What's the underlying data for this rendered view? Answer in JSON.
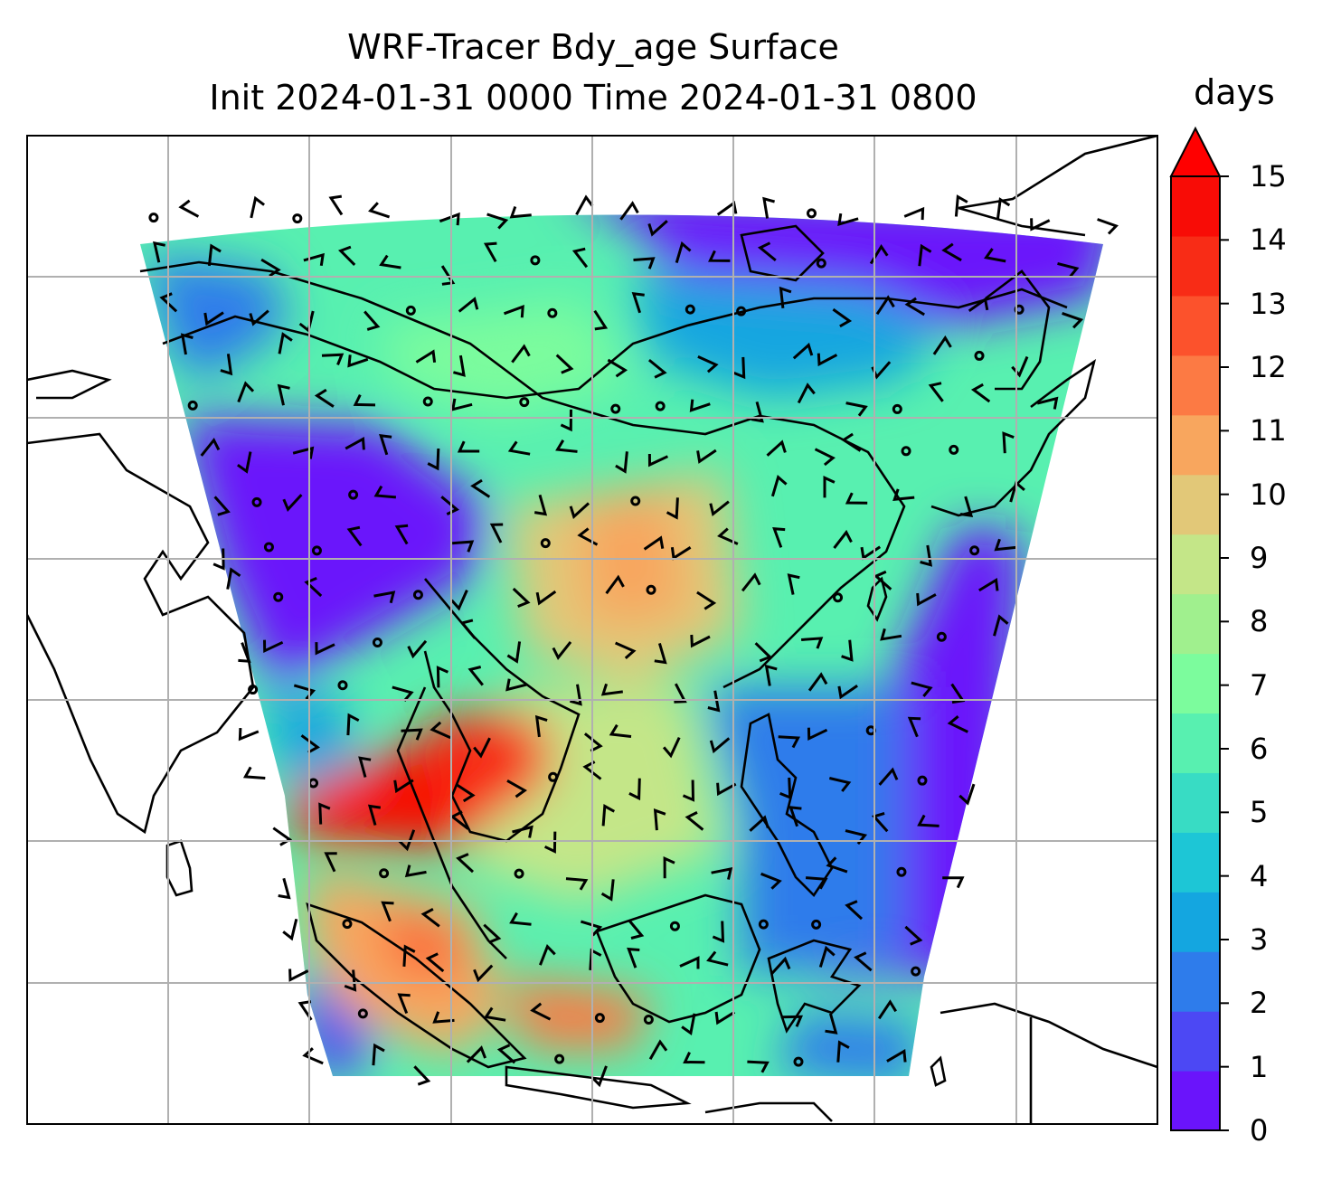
{
  "title": {
    "line1": "WRF-Tracer Bdy_age Surface",
    "line2": "Init 2024-01-31 0000 Time 2024-01-31 0800"
  },
  "colorbar": {
    "unit": "days",
    "ticks": [
      "0",
      "1",
      "2",
      "3",
      "4",
      "5",
      "6",
      "7",
      "8",
      "9",
      "10",
      "11",
      "12",
      "13",
      "14",
      "15"
    ],
    "colors": [
      "#6a14fb",
      "#4c48f4",
      "#2e7ceb",
      "#14a6e0",
      "#1dc6d6",
      "#38dcc4",
      "#58f0b0",
      "#7cfc9d",
      "#a0f08e",
      "#c4e688",
      "#e2c878",
      "#f8a65e",
      "#fc7a44",
      "#fc522c",
      "#f82c16",
      "#f80c06"
    ],
    "extend_arrow_color": "#ff0000"
  },
  "colors": {
    "coastline": "#000000",
    "gridlines": "#b0b0b0",
    "frame": "#000000"
  }
}
